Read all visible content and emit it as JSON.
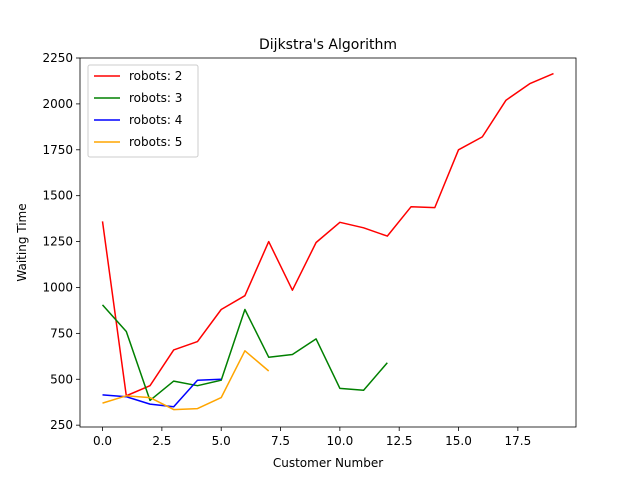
{
  "chart_data": {
    "type": "line",
    "title": "Dijkstra's Algorithm",
    "xlabel": "Customer Number",
    "ylabel": "Waiting Time",
    "xlim": [
      -0.95,
      19.95
    ],
    "ylim": [
      240,
      2250
    ],
    "xticks": [
      0.0,
      2.5,
      5.0,
      7.5,
      10.0,
      12.5,
      15.0,
      17.5
    ],
    "xtick_labels": [
      "0.0",
      "2.5",
      "5.0",
      "7.5",
      "10.0",
      "12.5",
      "15.0",
      "17.5"
    ],
    "yticks": [
      250,
      500,
      750,
      1000,
      1250,
      1500,
      1750,
      2000,
      2250
    ],
    "ytick_labels": [
      "250",
      "500",
      "750",
      "1000",
      "1250",
      "1500",
      "1750",
      "2000",
      "2250"
    ],
    "grid": false,
    "legend_position": "top-left",
    "series": [
      {
        "name": "robots: 2",
        "color": "#ff0000",
        "x": [
          0,
          1,
          2,
          3,
          4,
          5,
          6,
          7,
          8,
          9,
          10,
          11,
          12,
          13,
          14,
          15,
          16,
          17,
          18,
          19
        ],
        "values": [
          1360,
          410,
          465,
          660,
          705,
          880,
          955,
          1250,
          985,
          1245,
          1355,
          1325,
          1280,
          1440,
          1435,
          1750,
          1820,
          2020,
          2110,
          2165
        ]
      },
      {
        "name": "robots: 3",
        "color": "#008000",
        "x": [
          0,
          1,
          2,
          3,
          4,
          5,
          6,
          7,
          8,
          9,
          10,
          11,
          12
        ],
        "values": [
          905,
          760,
          385,
          490,
          465,
          495,
          880,
          620,
          635,
          720,
          450,
          440,
          590
        ]
      },
      {
        "name": "robots: 4",
        "color": "#0000ff",
        "x": [
          0,
          1,
          2,
          3,
          4,
          5
        ],
        "values": [
          415,
          405,
          365,
          350,
          495,
          500
        ]
      },
      {
        "name": "robots: 5",
        "color": "#ffa500",
        "x": [
          0,
          1,
          2,
          3,
          4,
          5,
          6,
          7
        ],
        "values": [
          370,
          410,
          400,
          335,
          340,
          400,
          655,
          545
        ]
      }
    ]
  }
}
